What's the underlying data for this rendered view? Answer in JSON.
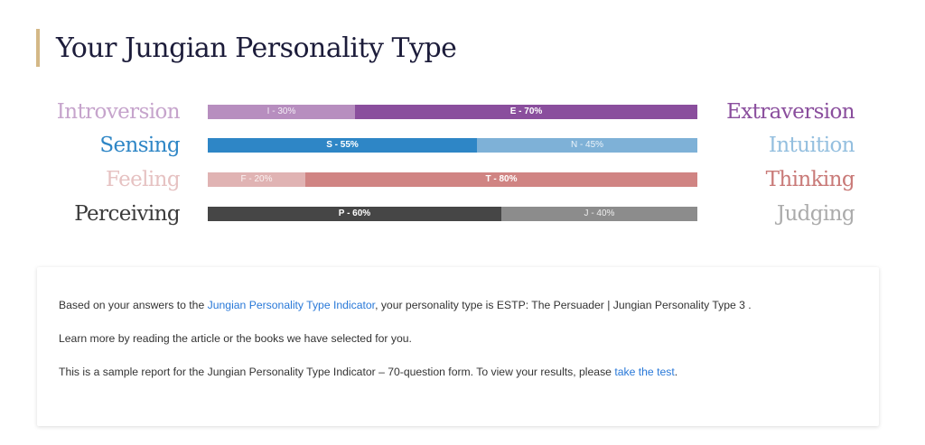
{
  "page_title": "Your Jungian Personality Type",
  "colors": {
    "title_accent": "#d4b886",
    "link": "#2878d8"
  },
  "scales": [
    {
      "left_label": "Introversion",
      "right_label": "Extraversion",
      "left_color": "#b78ebf",
      "right_color": "#8a4e9d",
      "left_text_color": "#c6a4cc",
      "right_text_color": "#8a4e9d",
      "left_value": 0.3,
      "right_value": 0.7,
      "left_bar_label": "I - 30%",
      "right_bar_label": "E - 70%",
      "dominant": "right"
    },
    {
      "left_label": "Sensing",
      "right_label": "Intuition",
      "left_color": "#2e86c6",
      "right_color": "#7eb1d7",
      "left_text_color": "#2e86c6",
      "right_text_color": "#94bfdf",
      "left_value": 0.55,
      "right_value": 0.45,
      "left_bar_label": "S - 55%",
      "right_bar_label": "N - 45%",
      "dominant": "left"
    },
    {
      "left_label": "Feeling",
      "right_label": "Thinking",
      "left_color": "#e0b3b3",
      "right_color": "#d08483",
      "left_text_color": "#e6c2c2",
      "right_text_color": "#c97a78",
      "left_value": 0.2,
      "right_value": 0.8,
      "left_bar_label": "F - 20%",
      "right_bar_label": "T - 80%",
      "dominant": "right"
    },
    {
      "left_label": "Perceiving",
      "right_label": "Judging",
      "left_color": "#464646",
      "right_color": "#8c8c8c",
      "left_text_color": "#3a3a3a",
      "right_text_color": "#ababab",
      "left_value": 0.6,
      "right_value": 0.4,
      "left_bar_label": "P - 60%",
      "right_bar_label": "J - 40%",
      "dominant": "left"
    }
  ],
  "report": {
    "line1_prefix": "Based on your answers to the ",
    "line1_link": "Jungian Personality Type Indicator",
    "line1_suffix": ", your personality type is ESTP: The Persuader | Jungian Personality Type 3 .",
    "line2": "Learn more by reading the article or the books we have selected for you.",
    "line3_prefix": "This is a sample report for the Jungian Personality Type Indicator – 70-question form. To view your results, please ",
    "line3_link": "take the test",
    "line3_suffix": "."
  }
}
